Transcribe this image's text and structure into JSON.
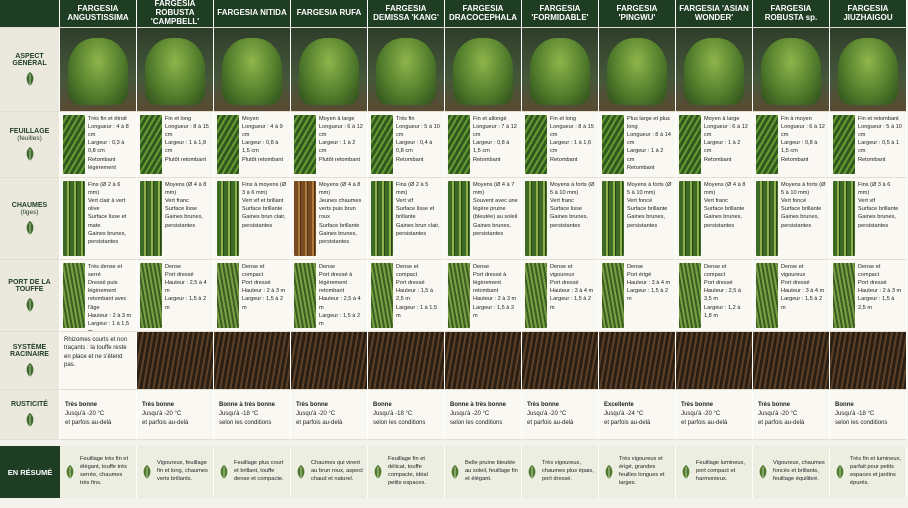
{
  "rows": {
    "aspect": {
      "label": "ASPECT GÉNÉRAL"
    },
    "feuillage": {
      "label": "FEUILLAGE",
      "sub": "(feuilles)"
    },
    "chaumes": {
      "label": "CHAUMES",
      "sub": "(tiges)"
    },
    "port": {
      "label": "PORT DE LA TOUFFE"
    },
    "racine": {
      "label": "SYSTÈME RACINAIRE",
      "note": "Rhizomes courts et non traçants : la touffe reste en place et ne s'étend pas."
    },
    "rusticite": {
      "label": "RUSTICITÉ"
    },
    "resume": {
      "label": "EN RÉSUMÉ"
    }
  },
  "columns": [
    {
      "name": "FARGESIA ANGUSTISSIMA",
      "feuillage": [
        "Très fin et étroit",
        "Longueur : 4 à 8 cm",
        "Largeur : 0,3 à 0,8 cm",
        "Retombant légèrement"
      ],
      "chaumes": [
        "Fins (Ø 2 à 6 mm)",
        "Vert clair à vert olive",
        "Surface lisse et mate",
        "Gaines brunes, persistantes"
      ],
      "port": [
        "Très dense et serré",
        "Dressé puis légèrement retombant avec l'âge",
        "Hauteur : 2 à 3 m",
        "Largeur : 1 à 1,5 m"
      ],
      "rusticite": [
        "Très bonne",
        "Jusqu'à -20 °C",
        "et parfois au-delà"
      ],
      "resume": "Feuillage très fin et élégant, touffe très serrée, chaumes très fins."
    },
    {
      "name": "FARGESIA ROBUSTA 'CAMPBELL'",
      "feuillage": [
        "Fin et long",
        "Longueur : 8 à 15 cm",
        "Largeur : 1 à 1,8 cm",
        "Plutôt retombant"
      ],
      "chaumes": [
        "Moyens (Ø 4 à 8 mm)",
        "Vert franc",
        "Surface lisse",
        "Gaines brunes, persistantes"
      ],
      "port": [
        "Dense",
        "Port dressé",
        "Hauteur : 2,5 à 4 m",
        "Largeur : 1,5 à 2 m"
      ],
      "rusticite": [
        "Très bonne",
        "Jusqu'à -20 °C",
        "et parfois au-delà"
      ],
      "resume": "Vigoureux, feuillage fin et long, chaumes verts brillants."
    },
    {
      "name": "FARGESIA NITIDA",
      "feuillage": [
        "Moyen",
        "Longueur : 4 à 9 cm",
        "Largeur : 0,8 à 1,5 cm",
        "Plutôt retombant"
      ],
      "chaumes": [
        "Fins à moyens (Ø 3 à 6 mm)",
        "Vert vif et brillant",
        "Surface brillante",
        "Gaines brun clair, persistantes"
      ],
      "port": [
        "Dense et compact",
        "Port dressé",
        "Hauteur : 2 à 3 m",
        "Largeur : 1,5 à 2 m"
      ],
      "rusticite": [
        "Bonne à très bonne",
        "Jusqu'à -18 °C",
        "selon les conditions"
      ],
      "resume": "Feuillage plus court et brillant, touffe dense et compacte."
    },
    {
      "name": "FARGESIA RUFA",
      "feuillage": [
        "Moyen à large",
        "Longueur : 6 à 12 cm",
        "Largeur : 1 à 2 cm",
        "Plutôt retombant"
      ],
      "chaumes": [
        "Moyens (Ø 4 à 8 mm)",
        "Jeunes chaumes verts puis brun roux",
        "Surface brillante",
        "Gaines brunes, persistantes"
      ],
      "port": [
        "Dense",
        "Port dressé à légèrement retombant",
        "Hauteur : 2,5 à 4 m",
        "Largeur : 1,5 à 2 m"
      ],
      "rusticite": [
        "Très bonne",
        "Jusqu'à -20 °C",
        "et parfois au-delà"
      ],
      "resume": "Chaumes qui virent au brun roux, aspect chaud et naturel."
    },
    {
      "name": "FARGESIA DEMISSA 'KANG'",
      "feuillage": [
        "Très fin",
        "Longueur : 5 à 10 cm",
        "Largeur : 0,4 à 0,8 cm",
        "Retombant"
      ],
      "chaumes": [
        "Fins (Ø 2 à 5 mm)",
        "Vert vif",
        "Surface lisse et brillante",
        "Gaines brun clair, persistantes"
      ],
      "port": [
        "Dense et compact",
        "Port dressé",
        "Hauteur : 1,5 à 2,5 m",
        "Largeur : 1 à 1,5 m"
      ],
      "rusticite": [
        "Bonne",
        "Jusqu'à -18 °C",
        "selon les conditions"
      ],
      "resume": "Feuillage fin et délicat, touffe compacte, idéal petits espaces."
    },
    {
      "name": "FARGESIA DRACOCEPHALA",
      "feuillage": [
        "Fin et allongé",
        "Longueur : 7 à 12 cm",
        "Largeur : 0,8 à 1,5 cm",
        "Retombant"
      ],
      "chaumes": [
        "Moyens (Ø 4 à 7 mm)",
        "Souvent avec une légère pruine (bleutée) au soleil",
        "Gaines brunes, persistantes"
      ],
      "port": [
        "Dense",
        "Port dressé à légèrement retombant",
        "Hauteur : 2 à 3 m",
        "Largeur : 1,5 à 2 m"
      ],
      "rusticite": [
        "Bonne à très bonne",
        "Jusqu'à -20 °C",
        "selon les conditions"
      ],
      "resume": "Belle pruine bleutée au soleil, feuillage fin et élégant."
    },
    {
      "name": "FARGESIA 'FORMIDABLE'",
      "feuillage": [
        "Fin et long",
        "Longueur : 8 à 15 cm",
        "Largeur : 1 à 1,6 cm",
        "Retombant"
      ],
      "chaumes": [
        "Moyens à forts (Ø 5 à 10 mm)",
        "Vert franc",
        "Surface lisse",
        "Gaines brunes, persistantes"
      ],
      "port": [
        "Dense et vigoureux",
        "Port dressé",
        "Hauteur : 3 à 4 m",
        "Largeur : 1,5 à 2 m"
      ],
      "rusticite": [
        "Très bonne",
        "Jusqu'à -20 °C",
        "et parfois au-delà"
      ],
      "resume": "Très vigoureux, chaumes plus épais, port dressé."
    },
    {
      "name": "FARGESIA 'PINGWU'",
      "feuillage": [
        "Plus large et plus long",
        "Longueur : 8 à 14 cm",
        "Largeur : 1 à 2 cm",
        "Retombant"
      ],
      "chaumes": [
        "Moyens à forts (Ø 5 à 10 mm)",
        "Vert foncé",
        "Surface brillante",
        "Gaines brunes, persistantes"
      ],
      "port": [
        "Dense",
        "Port érigé",
        "Hauteur : 3 à 4 m",
        "Largeur : 1,5 à 2 m"
      ],
      "rusticite": [
        "Excellente",
        "Jusqu'à -24 °C",
        "et parfois au-delà"
      ],
      "resume": "Très vigoureux et érigé, grandes feuilles longues et larges."
    },
    {
      "name": "FARGESIA 'ASIAN WONDER'",
      "feuillage": [
        "Moyen à large",
        "Longueur : 6 à 12 cm",
        "Largeur : 1 à 2 cm",
        "Retombant"
      ],
      "chaumes": [
        "Moyens (Ø 4 à 8 mm)",
        "Vert franc",
        "Surface brillante",
        "Gaines brunes, persistantes"
      ],
      "port": [
        "Dense et compact",
        "Port dressé",
        "Hauteur : 2,5 à 3,5 m",
        "Largeur : 1,2 à 1,8 m"
      ],
      "rusticite": [
        "Très bonne",
        "Jusqu'à -20 °C",
        "et parfois au-delà"
      ],
      "resume": "Feuillage lumineux, port compact et harmonieux."
    },
    {
      "name": "FARGESIA ROBUSTA sp.",
      "feuillage": [
        "Fin à moyen",
        "Longueur : 6 à 12 cm",
        "Largeur : 0,8 à 1,5 cm",
        "Retombant"
      ],
      "chaumes": [
        "Moyens à forts (Ø 5 à 10 mm)",
        "Vert foncé",
        "Surface brillante",
        "Gaines brunes, persistantes"
      ],
      "port": [
        "Dense et vigoureux",
        "Port dressé",
        "Hauteur : 3 à 4 m",
        "Largeur : 1,5 à 2 m"
      ],
      "rusticite": [
        "Très bonne",
        "Jusqu'à -20 °C",
        "et parfois au-delà"
      ],
      "resume": "Vigoureux, chaumes foncés et brillants, feuillage équilibré."
    },
    {
      "name": "FARGESIA JIUZHAIGOU",
      "feuillage": [
        "Fin et retombant",
        "Longueur : 5 à 10 cm",
        "Largeur : 0,5 à 1 cm",
        "Retombant"
      ],
      "chaumes": [
        "Fins (Ø 3 à 6 mm)",
        "Vert vif",
        "Surface brillante",
        "Gaines brunes, persistantes"
      ],
      "port": [
        "Dense et compact",
        "Port dressé",
        "Hauteur : 2 à 3 m",
        "Largeur : 1,5 à 2,5 m"
      ],
      "rusticite": [
        "Bonne",
        "Jusqu'à -18 °C",
        "selon les conditions"
      ],
      "resume": "Très fin et lumineux, parfait pour petits espaces et jardins épurés."
    }
  ]
}
